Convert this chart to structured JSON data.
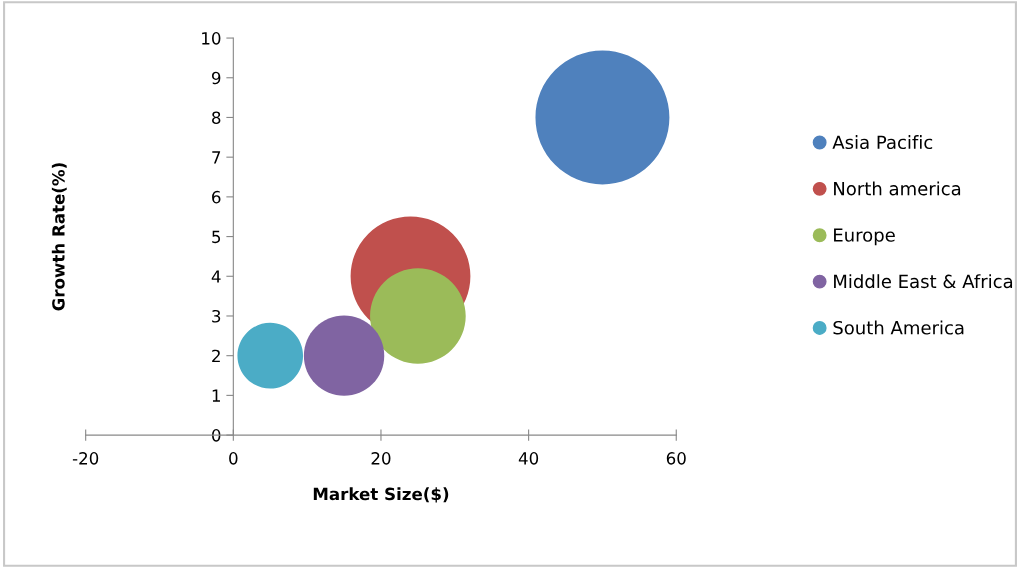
{
  "chart_data": {
    "type": "bubble",
    "xlabel": "Market Size($)",
    "ylabel": "Growth Rate(%)",
    "xlim": [
      -20,
      60
    ],
    "xticks": [
      -20,
      0,
      20,
      40,
      60
    ],
    "ylim": [
      0,
      10
    ],
    "yticks": [
      0,
      1,
      2,
      3,
      4,
      5,
      6,
      7,
      8,
      9,
      10
    ],
    "grid": false,
    "legend": "right",
    "marker": "circle",
    "series": [
      {
        "name": "Asia Pacific",
        "color": "#4f81bd",
        "x": [
          50
        ],
        "values": [
          8
        ],
        "sizes": [
          1
        ]
      },
      {
        "name": "North america",
        "color": "#c0504d",
        "x": [
          24
        ],
        "values": [
          4
        ],
        "sizes": [
          0.8
        ]
      },
      {
        "name": "Europe",
        "color": "#9bbb59",
        "x": [
          25
        ],
        "values": [
          3
        ],
        "sizes": [
          0.51
        ]
      },
      {
        "name": "Middle East & Africa",
        "color": "#8064a2",
        "x": [
          15
        ],
        "values": [
          2
        ],
        "sizes": [
          0.36
        ]
      },
      {
        "name": "South America",
        "color": "#4bacc6",
        "x": [
          5
        ],
        "values": [
          2
        ],
        "sizes": [
          0.24
        ]
      }
    ]
  }
}
